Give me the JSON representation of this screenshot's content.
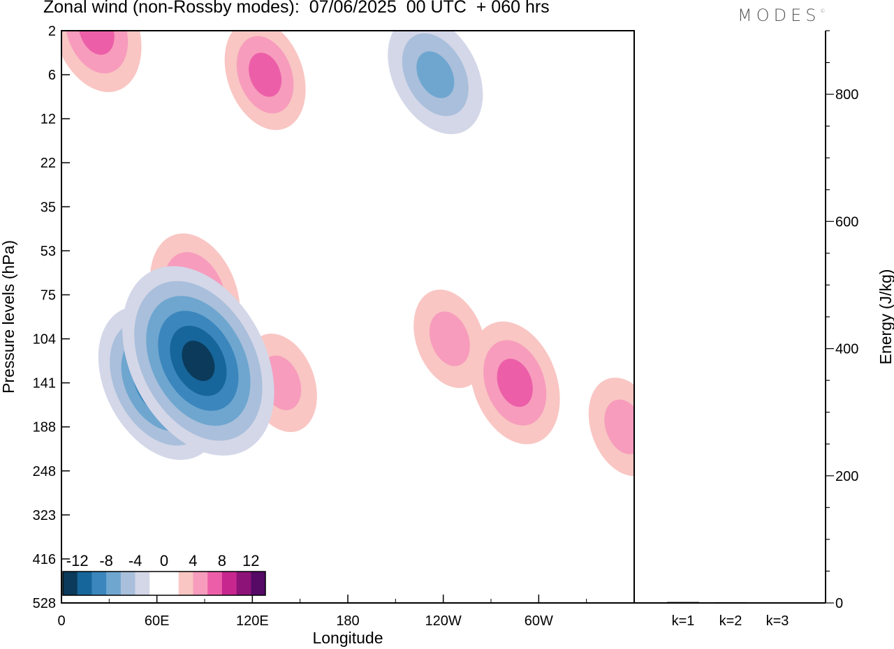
{
  "header": {
    "title": "Zonal wind (non-Rossby modes):  07/06/2025  00 UTC  + 060 hrs",
    "brand": "MODES"
  },
  "colors": {
    "neg": [
      "#0b3a5a",
      "#17669b",
      "#3b86bd",
      "#6ea6cf",
      "#a9bfdb",
      "#d4d7e8"
    ],
    "zero": "#ffffff",
    "pos": [
      "#f9c6c3",
      "#f79cbd",
      "#ec5fa8",
      "#c8268f",
      "#8e1379",
      "#560a66"
    ]
  },
  "chart_data": [
    {
      "type": "heatmap",
      "title": "Zonal wind (non-Rossby modes):  07/06/2025  00 UTC  + 060 hrs",
      "xlabel": "Longitude",
      "ylabel": "Pressure levels (hPa)",
      "x_ticks": [
        "0",
        "60E",
        "120E",
        "180",
        "120W",
        "60W"
      ],
      "x_tick_values": [
        0,
        60,
        120,
        180,
        240,
        300
      ],
      "xlim": [
        0,
        360
      ],
      "y_ticks": [
        "2",
        "6",
        "12",
        "22",
        "35",
        "53",
        "75",
        "104",
        "141",
        "188",
        "248",
        "323",
        "416",
        "528"
      ],
      "colorbar": {
        "tick_labels": [
          "-12",
          "-8",
          "-4",
          "0",
          "4",
          "8",
          "12"
        ],
        "levels": [
          -14,
          -12,
          -10,
          -8,
          -6,
          -4,
          -2,
          2,
          4,
          6,
          8,
          10,
          12,
          14
        ]
      },
      "features": [
        {
          "lon": 86,
          "level": "104-141",
          "value": -13
        },
        {
          "lon": 62,
          "level": "141",
          "value": -10
        },
        {
          "lon": 84,
          "level": "75",
          "value": 7
        },
        {
          "lon": 285,
          "level": "141",
          "value": 7
        },
        {
          "lon": 138,
          "level": "141",
          "value": 5
        },
        {
          "lon": 354,
          "level": "188",
          "value": 5
        },
        {
          "lon": 235,
          "level": "6",
          "value": -7
        },
        {
          "lon": 128,
          "level": "6",
          "value": 6
        },
        {
          "lon": 22,
          "level": "2",
          "value": 7
        },
        {
          "lon": 244,
          "level": "104",
          "value": 5
        }
      ]
    },
    {
      "type": "bar",
      "categories": [
        "k=1",
        "k=2",
        "k=3"
      ],
      "values": [
        1.5,
        1.2,
        0.8
      ],
      "ylabel": "Energy (J/kg)",
      "ylim": [
        0,
        900
      ],
      "y_ticks": [
        0,
        200,
        400,
        600,
        800
      ]
    }
  ]
}
